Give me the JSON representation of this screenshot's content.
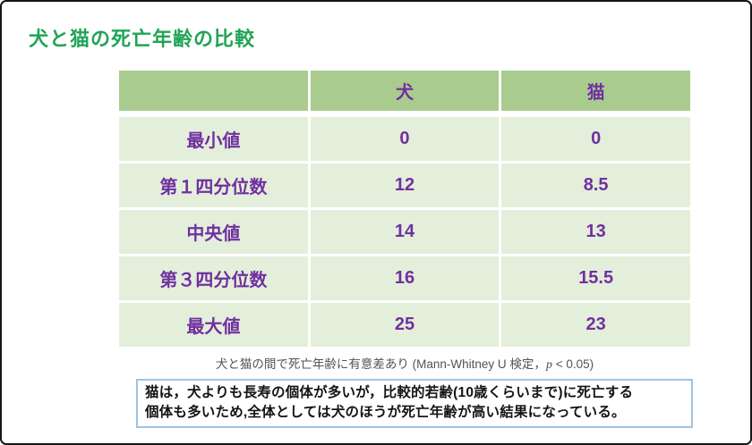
{
  "page": {
    "title": "犬と猫の死亡年齢の比較"
  },
  "table": {
    "columns": [
      "",
      "犬",
      "猫"
    ],
    "header": {
      "corner": "",
      "dog": "犬",
      "cat": "猫"
    },
    "rows": [
      {
        "label": "最小値",
        "dog": "0",
        "cat": "0"
      },
      {
        "label": "第１四分位数",
        "dog": "12",
        "cat": "8.5"
      },
      {
        "label": "中央値",
        "dog": "14",
        "cat": "13"
      },
      {
        "label": "第３四分位数",
        "dog": "16",
        "cat": "15.5"
      },
      {
        "label": "最大値",
        "dog": "25",
        "cat": "23"
      }
    ]
  },
  "footnote": {
    "prefix": "犬と猫の間で死亡年齢に有意差あり (Mann-Whitney U 検定，",
    "p_symbol": "p",
    "suffix": " < 0.05)"
  },
  "note_box": {
    "line1": "猫は，犬よりも長寿の個体が多いが，比較的若齢(10歳くらいまで)に死亡する",
    "line2": "個体も多いため,全体としては犬のほうが死亡年齢が高い結果になっている。"
  },
  "colors": {
    "title_green": "#21a457",
    "table_header_green": "#a9cc8e",
    "table_row_green": "#e4efdb",
    "table_text_purple": "#7030a0",
    "footnote_gray": "#535353",
    "note_box_border_blue": "#9dc3e6",
    "frame_border": "#161616"
  }
}
